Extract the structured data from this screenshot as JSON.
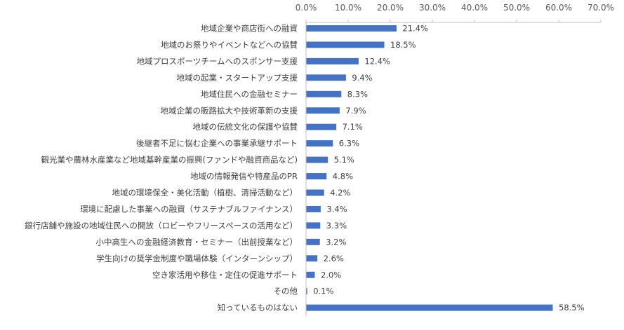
{
  "chart_data": {
    "type": "bar",
    "orientation": "horizontal",
    "color": "#4472C4",
    "categories": [
      "地域企業や商店街への融資",
      "地域のお祭りやイベントなどへの協賛",
      "地域プロスポーツチームへのスポンサー支援",
      "地域の起業・スタートアップ支援",
      "地域住民への金融セミナー",
      "地域企業の販路拡大や技術革新の支援",
      "地域の伝統文化の保護や協賛",
      "後継者不足に悩む企業への事業承継サポート",
      "観光業や農林水産業など地域基幹産業の振興(ファンドや融資商品など)",
      "地域の情報発信や特産品のPR",
      "地域の環境保全・美化活動（植樹、清掃活動など）",
      "環境に配慮した事業への融資（サステナブルファイナンス）",
      "銀行店舗や施設の地域住民への開放（ロビーやフリースペースの活用など）",
      "小中高生への金融経済教育・セミナー（出前授業など）",
      "学生向けの奨学金制度や職場体験（インターンシップ）",
      "空き家活用や移住・定住の促進サポート",
      "その他",
      "知っているものはない"
    ],
    "values": [
      21.4,
      18.5,
      12.4,
      9.4,
      8.3,
      7.9,
      7.1,
      6.3,
      5.1,
      4.8,
      4.2,
      3.4,
      3.3,
      3.2,
      2.6,
      2.0,
      0.1,
      58.5
    ],
    "value_labels": [
      "21.4%",
      "18.5%",
      "12.4%",
      "9.4%",
      "8.3%",
      "7.9%",
      "7.1%",
      "6.3%",
      "5.1%",
      "4.8%",
      "4.2%",
      "3.4%",
      "3.3%",
      "3.2%",
      "2.6%",
      "2.0%",
      "0.1%",
      "58.5%"
    ],
    "xlim": [
      0,
      70
    ],
    "xticks": [
      0,
      10,
      20,
      30,
      40,
      50,
      60,
      70
    ],
    "xtick_labels": [
      "0.0%",
      "10.0%",
      "20.0%",
      "30.0%",
      "40.0%",
      "50.0%",
      "60.0%",
      "70.0%"
    ],
    "axis_position": "top",
    "grid": false,
    "title": "",
    "xlabel": "",
    "ylabel": ""
  }
}
